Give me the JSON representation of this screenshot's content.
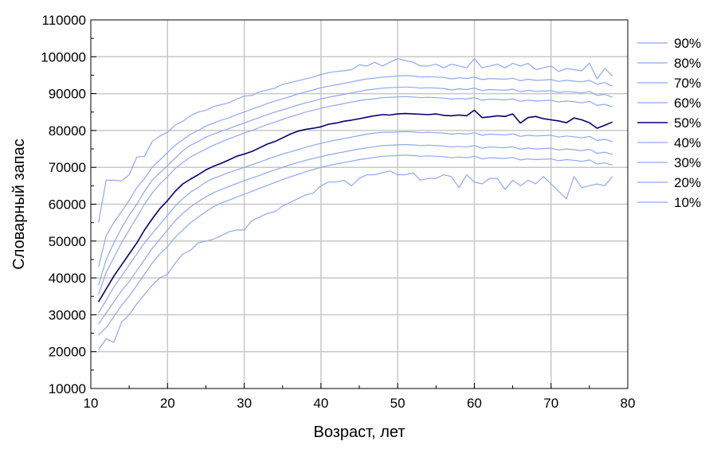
{
  "chart_data": {
    "type": "line",
    "title": "",
    "xlabel": "Возраст, лет",
    "ylabel": "Словарный запас",
    "xlim": [
      10,
      80
    ],
    "ylim": [
      10000,
      110000
    ],
    "xticks": [
      10,
      20,
      30,
      40,
      50,
      60,
      70,
      80
    ],
    "yticks": [
      10000,
      20000,
      30000,
      40000,
      50000,
      60000,
      70000,
      80000,
      90000,
      100000,
      110000
    ],
    "grid": true,
    "legend_position": "right",
    "colors": {
      "light": "#8fa8f0",
      "median": "#00006e",
      "grid": "#c8c8c8",
      "axis": "#000000"
    },
    "x": [
      11,
      12,
      13,
      14,
      15,
      16,
      17,
      18,
      19,
      20,
      21,
      22,
      23,
      24,
      25,
      26,
      27,
      28,
      29,
      30,
      31,
      32,
      33,
      34,
      35,
      36,
      37,
      38,
      39,
      40,
      41,
      42,
      43,
      44,
      45,
      46,
      47,
      48,
      49,
      50,
      51,
      52,
      53,
      54,
      55,
      56,
      57,
      58,
      59,
      60,
      61,
      62,
      63,
      64,
      65,
      66,
      67,
      68,
      69,
      70,
      71,
      72,
      73,
      74,
      75,
      76,
      77,
      78
    ],
    "series": [
      {
        "name": "90%",
        "median": false,
        "values": [
          55000,
          66500,
          66500,
          66300,
          68000,
          72800,
          73000,
          77000,
          78500,
          79500,
          81500,
          82500,
          84000,
          85000,
          85500,
          86500,
          87000,
          87500,
          88500,
          89300,
          89500,
          90500,
          91000,
          91500,
          92500,
          93000,
          93500,
          94000,
          94500,
          95200,
          95700,
          96000,
          96200,
          96500,
          97800,
          97500,
          98500,
          97500,
          98500,
          99500,
          99000,
          98500,
          97500,
          97500,
          98000,
          97000,
          98000,
          97500,
          97000,
          99500,
          97000,
          97500,
          98000,
          97000,
          98200,
          97500,
          98200,
          96500,
          97000,
          97500,
          96000,
          96800,
          96500,
          96200,
          98300,
          94000,
          96800,
          94800
        ]
      },
      {
        "name": "80%",
        "median": false,
        "values": [
          43000,
          51500,
          55000,
          58000,
          61000,
          64500,
          67000,
          70000,
          72000,
          74000,
          76000,
          77500,
          79000,
          80000,
          81200,
          82000,
          82800,
          83400,
          84300,
          85000,
          85800,
          86500,
          87300,
          88000,
          88600,
          89200,
          89900,
          90500,
          91000,
          91600,
          92000,
          92400,
          92800,
          93200,
          93600,
          94000,
          94200,
          94500,
          94600,
          94800,
          94900,
          94800,
          94500,
          94600,
          94500,
          94400,
          94000,
          94300,
          94100,
          94500,
          93800,
          94100,
          94000,
          93900,
          94200,
          93500,
          93900,
          93600,
          93700,
          93800,
          93300,
          93600,
          93400,
          93200,
          93600,
          92500,
          93000,
          92000
        ]
      },
      {
        "name": "70%",
        "median": false,
        "values": [
          38000,
          45000,
          49500,
          53500,
          57000,
          60000,
          63500,
          66500,
          68500,
          70500,
          72500,
          74500,
          76000,
          77000,
          78200,
          79000,
          79800,
          80500,
          81300,
          82000,
          82800,
          83500,
          84300,
          85000,
          85600,
          86200,
          86900,
          87500,
          88000,
          88600,
          89000,
          89400,
          89800,
          90200,
          90600,
          91000,
          91200,
          91500,
          91600,
          91700,
          91800,
          91700,
          91500,
          91600,
          91500,
          91400,
          91000,
          91300,
          91100,
          91500,
          90800,
          91100,
          91000,
          90900,
          91200,
          90500,
          90900,
          90600,
          90700,
          90800,
          90300,
          90600,
          90400,
          90200,
          90600,
          89500,
          89800,
          89000
        ]
      },
      {
        "name": "60%",
        "median": false,
        "values": [
          35500,
          41500,
          45500,
          49500,
          53000,
          56500,
          60000,
          63000,
          65500,
          67500,
          69700,
          71300,
          72800,
          73900,
          75000,
          76000,
          76900,
          77700,
          78500,
          79300,
          80000,
          80800,
          81600,
          82300,
          83000,
          83700,
          84300,
          85000,
          85500,
          86000,
          86500,
          86900,
          87300,
          87700,
          88100,
          88400,
          88600,
          88900,
          89000,
          89100,
          89200,
          89100,
          88900,
          89000,
          88900,
          88800,
          88500,
          88700,
          88500,
          88900,
          88200,
          88500,
          88400,
          88300,
          88600,
          87900,
          88200,
          88000,
          88100,
          88200,
          87700,
          88000,
          87800,
          87500,
          87900,
          86800,
          87100,
          86400
        ]
      },
      {
        "name": "50%",
        "median": true,
        "values": [
          33500,
          37000,
          40500,
          43500,
          46500,
          49500,
          53000,
          56000,
          58800,
          61000,
          63500,
          65500,
          66800,
          68000,
          69300,
          70300,
          71100,
          72000,
          73000,
          73600,
          74300,
          75300,
          76300,
          77000,
          78000,
          79000,
          79800,
          80300,
          80600,
          81000,
          81700,
          82000,
          82500,
          82800,
          83200,
          83600,
          84000,
          84300,
          84200,
          84500,
          84600,
          84500,
          84400,
          84300,
          84500,
          84100,
          84000,
          84200,
          84000,
          85500,
          83500,
          83700,
          84000,
          83800,
          84500,
          82000,
          83500,
          83800,
          83200,
          82900,
          82600,
          82100,
          83400,
          82900,
          82100,
          80600,
          81400,
          82300
        ]
      },
      {
        "name": "40%",
        "median": false,
        "values": [
          30500,
          34000,
          37500,
          40500,
          43500,
          46500,
          49500,
          52000,
          54500,
          57000,
          59500,
          61500,
          63300,
          64500,
          66000,
          67000,
          67800,
          68600,
          69300,
          70000,
          70700,
          71400,
          72200,
          72900,
          73600,
          74200,
          74800,
          75400,
          76000,
          76500,
          77000,
          77400,
          77800,
          78200,
          78600,
          79000,
          79300,
          79500,
          79500,
          79600,
          79700,
          79600,
          79400,
          79500,
          79400,
          79300,
          79000,
          79200,
          79000,
          79400,
          78700,
          79000,
          78900,
          78800,
          79100,
          78400,
          78700,
          78500,
          78600,
          78700,
          78200,
          78500,
          78300,
          78000,
          78400,
          77300,
          77600,
          77000
        ]
      },
      {
        "name": "30%",
        "median": false,
        "values": [
          27500,
          30500,
          33500,
          36500,
          39000,
          42000,
          45000,
          48000,
          50500,
          53000,
          55500,
          57500,
          59300,
          60700,
          62000,
          63100,
          64000,
          64800,
          65600,
          66400,
          67100,
          67800,
          68600,
          69300,
          70000,
          70700,
          71300,
          71900,
          72400,
          72900,
          73400,
          73800,
          74200,
          74600,
          75000,
          75300,
          75600,
          75900,
          76000,
          76100,
          76200,
          76100,
          75900,
          76000,
          75900,
          75800,
          75500,
          75700,
          75500,
          75900,
          75200,
          75500,
          75400,
          75300,
          75600,
          74900,
          75200,
          75000,
          75100,
          75200,
          74700,
          75000,
          74800,
          74500,
          74900,
          73800,
          74100,
          73500
        ]
      },
      {
        "name": "20%",
        "median": false,
        "values": [
          24500,
          26500,
          29500,
          32500,
          35000,
          38000,
          41000,
          44000,
          46500,
          48500,
          51000,
          53000,
          55000,
          56500,
          58000,
          59300,
          60300,
          61100,
          61900,
          62700,
          63500,
          64300,
          65100,
          65900,
          66700,
          67400,
          68100,
          68800,
          69400,
          70000,
          70500,
          70900,
          71300,
          71700,
          72100,
          72400,
          72700,
          73000,
          73100,
          73200,
          73300,
          73200,
          73000,
          73100,
          73000,
          72900,
          72600,
          72800,
          72600,
          73000,
          72300,
          72600,
          72500,
          72400,
          72700,
          72000,
          72300,
          72100,
          72200,
          72300,
          71800,
          72100,
          71900,
          71600,
          72000,
          70900,
          71200,
          70600
        ]
      },
      {
        "name": "10%",
        "median": false,
        "values": [
          20500,
          23500,
          22500,
          28000,
          30000,
          33000,
          35500,
          38000,
          40000,
          41000,
          44000,
          46500,
          47500,
          49500,
          50000,
          50500,
          51500,
          52500,
          53000,
          53000,
          55500,
          56500,
          57500,
          58000,
          59500,
          60500,
          61500,
          62500,
          63000,
          65000,
          66000,
          66000,
          66500,
          65000,
          67000,
          68000,
          68000,
          68500,
          69000,
          68000,
          68000,
          68500,
          66500,
          67000,
          67000,
          68000,
          67500,
          64500,
          68000,
          66000,
          65500,
          67000,
          67000,
          64000,
          66500,
          65000,
          66500,
          65500,
          67500,
          65500,
          63500,
          61500,
          67500,
          64500,
          65000,
          65500,
          65000,
          67500
        ]
      }
    ]
  }
}
